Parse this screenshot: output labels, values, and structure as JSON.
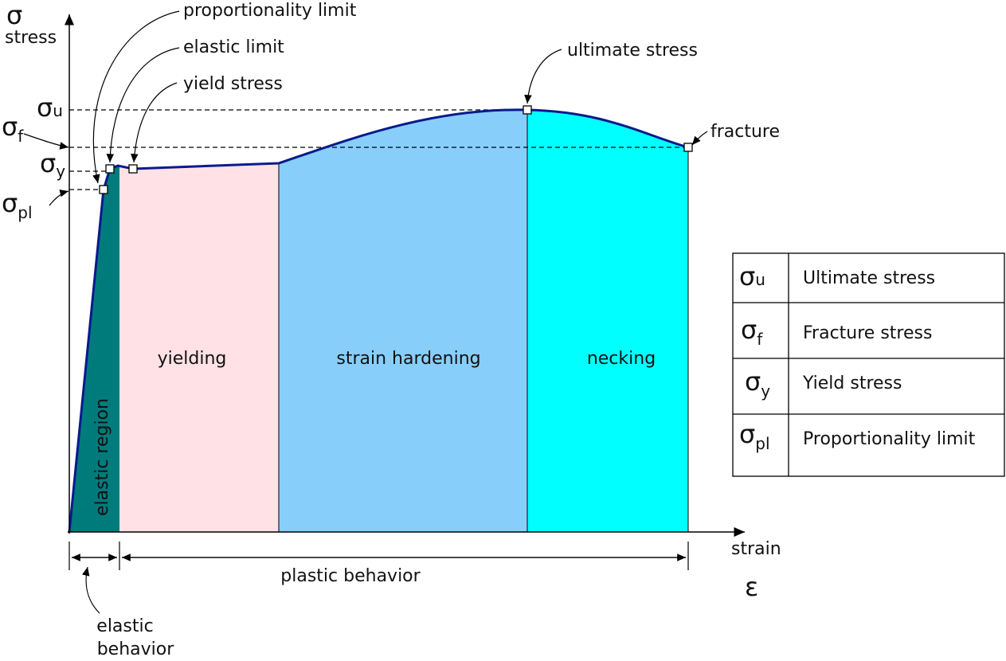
{
  "axes": {
    "y_symbol": "σ",
    "y_label": "stress",
    "x_label": "strain",
    "x_symbol": "ε"
  },
  "annotations": {
    "proportionality_limit": "proportionality limit",
    "elastic_limit": "elastic limit",
    "yield_stress": "yield stress",
    "ultimate_stress": "ultimate stress",
    "fracture": "fracture"
  },
  "levels": [
    {
      "symbol": "σ",
      "subscript": "u"
    },
    {
      "symbol": "σ",
      "subscript": "f"
    },
    {
      "symbol": "σ",
      "subscript": "y"
    },
    {
      "symbol": "σ",
      "subscript": "pl"
    }
  ],
  "regions": [
    "elastic region",
    "yielding",
    "strain hardening",
    "necking"
  ],
  "behaviors": {
    "plastic": "plastic behavior",
    "elastic": [
      "elastic",
      "behavior"
    ]
  },
  "legend": {
    "rows": [
      {
        "symbol": "σ",
        "subscript": "u",
        "label": "Ultimate stress"
      },
      {
        "symbol": "σ",
        "subscript": "f",
        "label": "Fracture stress"
      },
      {
        "symbol": "σ",
        "subscript": "y",
        "label": "Yield stress"
      },
      {
        "symbol": "σ",
        "subscript": "pl",
        "label": "Proportionality limit"
      }
    ]
  }
}
